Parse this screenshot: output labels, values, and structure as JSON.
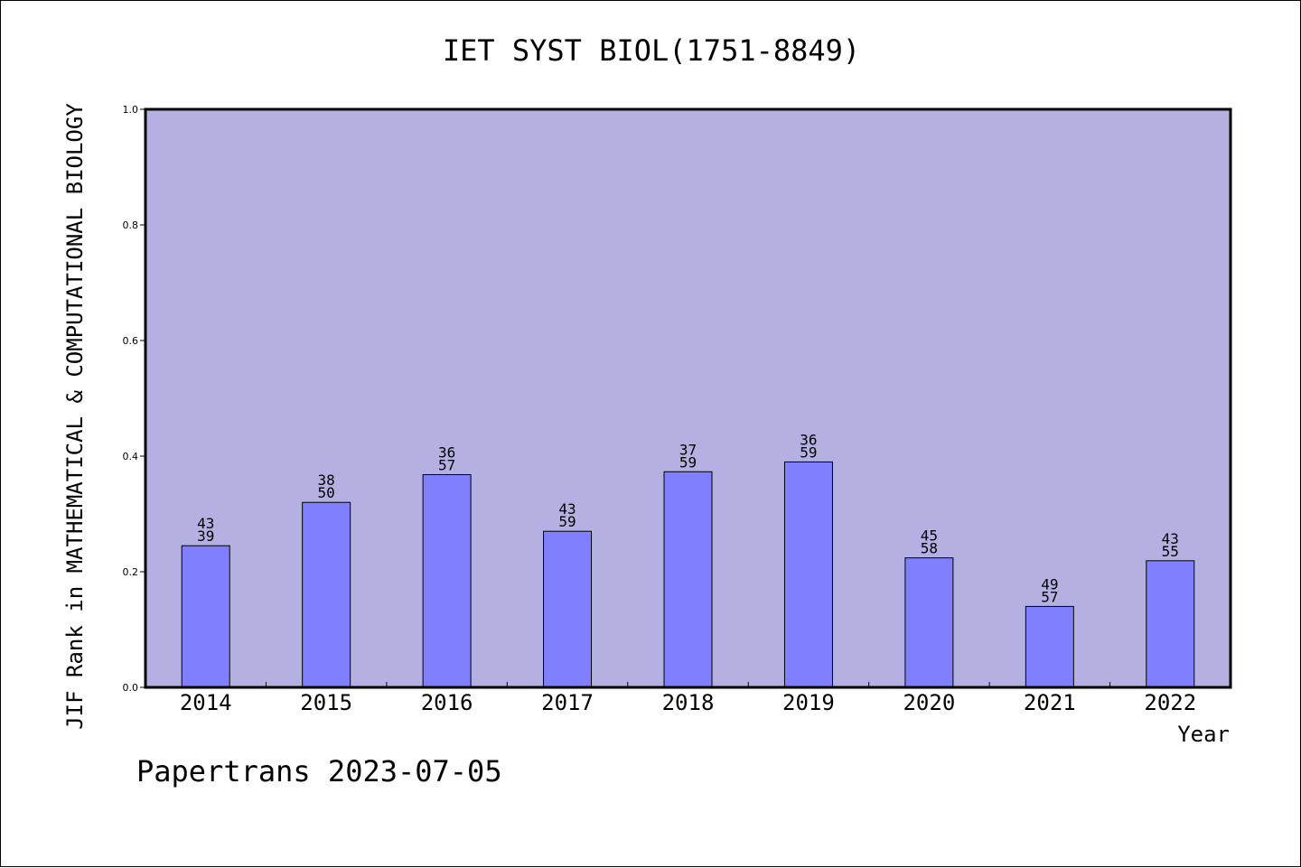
{
  "chart_data": {
    "type": "bar",
    "title": "IET SYST BIOL(1751-8849)",
    "xlabel": "Year",
    "ylabel": "JIF Rank in MATHEMATICAL & COMPUTATIONAL BIOLOGY",
    "ylim": [
      0,
      1.0
    ],
    "yticks": [
      "0.0",
      "0.2",
      "0.4",
      "0.6",
      "0.8",
      "1.0"
    ],
    "categories": [
      "2014",
      "2015",
      "2016",
      "2017",
      "2018",
      "2019",
      "2020",
      "2021",
      "2022"
    ],
    "values": [
      0.245,
      0.32,
      0.368,
      0.27,
      0.373,
      0.39,
      0.224,
      0.14,
      0.219
    ],
    "rank_labels": [
      {
        "top": "43",
        "bottom": "39"
      },
      {
        "top": "38",
        "bottom": "50"
      },
      {
        "top": "36",
        "bottom": "57"
      },
      {
        "top": "43",
        "bottom": "59"
      },
      {
        "top": "37",
        "bottom": "59"
      },
      {
        "top": "36",
        "bottom": "59"
      },
      {
        "top": "45",
        "bottom": "58"
      },
      {
        "top": "49",
        "bottom": "57"
      },
      {
        "top": "43",
        "bottom": "55"
      }
    ],
    "grid": false,
    "colors": {
      "plot_background": "#b5b0e2",
      "bar_fill": "#8080ff",
      "bar_stroke": "#000000"
    }
  },
  "footer": "Papertrans 2023-07-05"
}
